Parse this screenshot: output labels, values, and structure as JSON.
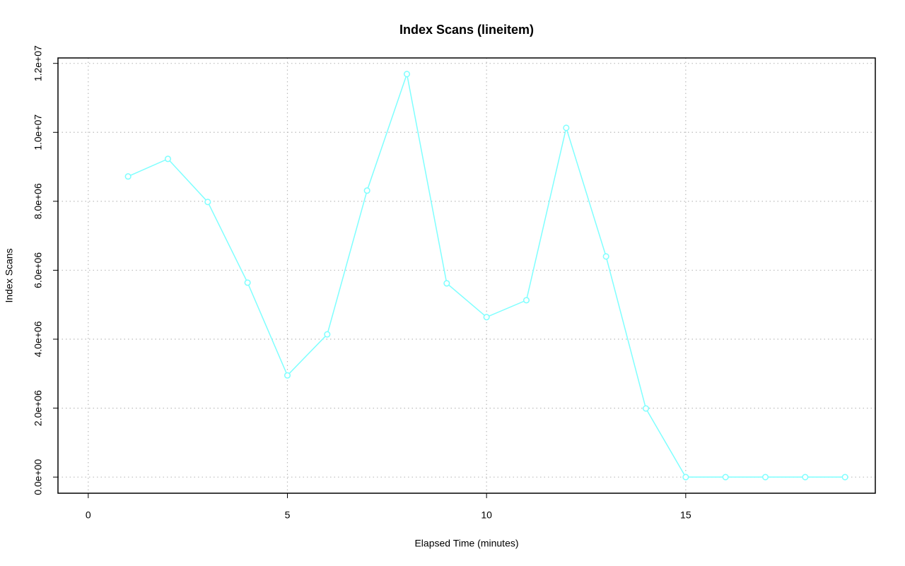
{
  "chart_data": {
    "type": "line",
    "title": "Index Scans (lineitem)",
    "xlabel": "Elapsed Time (minutes)",
    "ylabel": "Index Scans",
    "x": [
      1,
      2,
      3,
      4,
      5,
      6,
      7,
      8,
      9,
      10,
      11,
      12,
      13,
      14,
      15,
      16,
      17,
      18,
      19
    ],
    "series": [
      {
        "name": "Index Scans",
        "color": "#7fffff",
        "values": [
          8720000,
          9230000,
          7980000,
          5640000,
          2950000,
          4140000,
          8310000,
          11690000,
          5620000,
          4640000,
          5130000,
          10130000,
          6400000,
          1990000,
          0,
          0,
          0,
          0,
          0
        ]
      }
    ],
    "xlim": [
      -0.76,
      19.76
    ],
    "xticks": [
      0,
      5,
      10,
      15
    ],
    "ylim": [
      -468000,
      12158000
    ],
    "yticks": [
      {
        "value": 0,
        "label": "0.0e+00"
      },
      {
        "value": 2000000,
        "label": "2.0e+06"
      },
      {
        "value": 4000000,
        "label": "4.0e+06"
      },
      {
        "value": 6000000,
        "label": "6.0e+06"
      },
      {
        "value": 8000000,
        "label": "8.0e+06"
      },
      {
        "value": 10000000,
        "label": "1.0e+07"
      },
      {
        "value": 12000000,
        "label": "1.2e+07"
      }
    ],
    "grid": true
  }
}
